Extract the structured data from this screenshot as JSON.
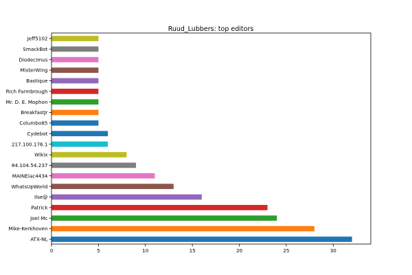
{
  "chart_data": {
    "type": "bar",
    "orientation": "horizontal",
    "title": "Ruud_Lubbers: top editors",
    "xlabel": "",
    "ylabel": "",
    "xlim": [
      0,
      34
    ],
    "xticks": [
      0,
      5,
      10,
      15,
      20,
      25,
      30
    ],
    "grid": false,
    "legend": "none",
    "categories": [
      "ATX-NL",
      "Mike-Kerkhoven",
      "Joel Mc",
      "Patrick",
      "Ilse@",
      "WhatsUpWorld",
      "MAINEiac4434",
      "84.104.54.237",
      "Wikix",
      "217.100.176.1",
      "Cydebot",
      "Columbo85",
      "BreakfastJr",
      "Mr. D. E. Mophon",
      "Rich Farmbrough",
      "Bastique",
      "MisterWing",
      "Diodecimus",
      "SmackBot",
      "Jeff5102"
    ],
    "values": [
      32,
      28,
      24,
      23,
      16,
      13,
      11,
      9,
      8,
      6,
      6,
      5,
      5,
      5,
      5,
      5,
      5,
      5,
      5,
      5
    ],
    "colors": [
      "#1f77b4",
      "#ff7f0e",
      "#2ca02c",
      "#d62728",
      "#9467bd",
      "#8c564b",
      "#e377c2",
      "#7f7f7f",
      "#bcbd22",
      "#17becf",
      "#1f77b4",
      "#1f77b4",
      "#ff7f0e",
      "#2ca02c",
      "#d62728",
      "#9467bd",
      "#8c564b",
      "#e377c2",
      "#7f7f7f",
      "#bcbd22"
    ]
  }
}
